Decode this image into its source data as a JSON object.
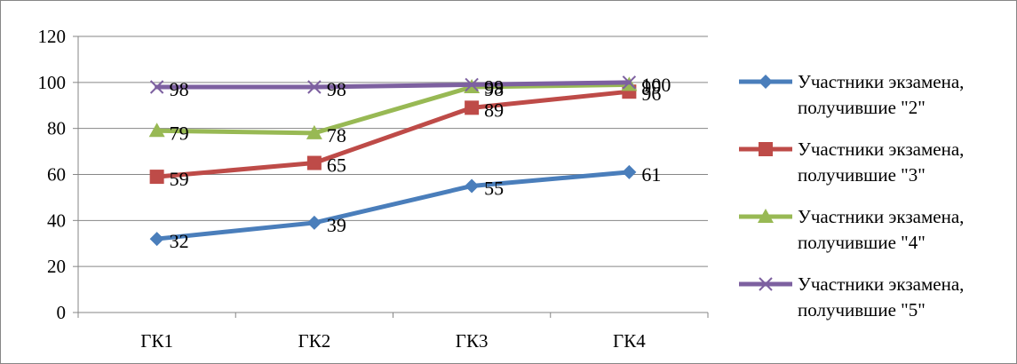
{
  "chart_data": {
    "type": "line",
    "categories": [
      "ГК1",
      "ГК2",
      "ГК3",
      "ГК4"
    ],
    "ylim": [
      0,
      120
    ],
    "yticks": [
      0,
      20,
      40,
      60,
      80,
      100,
      120
    ],
    "grid": true,
    "legend_position": "right",
    "series": [
      {
        "name_line1": "Участники экзамена,",
        "name_line2": "получившие \"2\"",
        "values": [
          32,
          39,
          55,
          61
        ],
        "color": "#4a7ebb",
        "marker": "diamond"
      },
      {
        "name_line1": "Участники экзамена,",
        "name_line2": "получившие \"3\"",
        "values": [
          59,
          65,
          89,
          96
        ],
        "color": "#be4b48",
        "marker": "square"
      },
      {
        "name_line1": "Участники экзамена,",
        "name_line2": "получившие \"4\"",
        "values": [
          79,
          78,
          98,
          99
        ],
        "color": "#98b954",
        "marker": "triangle"
      },
      {
        "name_line1": "Участники экзамена,",
        "name_line2": "получившие \"5\"",
        "values": [
          98,
          98,
          99,
          100
        ],
        "color": "#7d60a0",
        "marker": "x"
      }
    ]
  }
}
